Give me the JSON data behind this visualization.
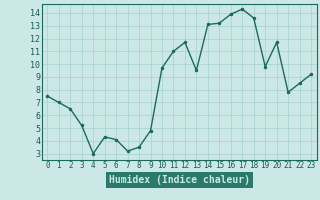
{
  "x": [
    0,
    1,
    2,
    3,
    4,
    5,
    6,
    7,
    8,
    9,
    10,
    11,
    12,
    13,
    14,
    15,
    16,
    17,
    18,
    19,
    20,
    21,
    22,
    23
  ],
  "y": [
    7.5,
    7.0,
    6.5,
    5.2,
    3.0,
    4.3,
    4.1,
    3.2,
    3.5,
    4.8,
    9.7,
    11.0,
    11.7,
    9.5,
    13.1,
    13.2,
    13.9,
    14.3,
    13.6,
    9.8,
    11.7,
    7.8,
    8.5,
    9.2
  ],
  "line_color": "#1a6b5a",
  "marker": ".",
  "marker_size": 3,
  "bg_color": "#cce8e6",
  "plot_bg_color": "#cce8e6",
  "grid_color": "#aad4d0",
  "bottom_bar_color": "#2a7a6a",
  "xlabel": "Humidex (Indice chaleur)",
  "xlim": [
    -0.5,
    23.5
  ],
  "ylim": [
    2.5,
    14.7
  ],
  "yticks": [
    3,
    4,
    5,
    6,
    7,
    8,
    9,
    10,
    11,
    12,
    13,
    14
  ],
  "xticks": [
    0,
    1,
    2,
    3,
    4,
    5,
    6,
    7,
    8,
    9,
    10,
    11,
    12,
    13,
    14,
    15,
    16,
    17,
    18,
    19,
    20,
    21,
    22,
    23
  ],
  "tick_label_color": "#1a5c4e",
  "xlabel_color": "#cce8e6",
  "xlabel_bg": "#2a7a6a",
  "spine_color": "#1a6b5a",
  "tick_color": "#1a6b5a"
}
